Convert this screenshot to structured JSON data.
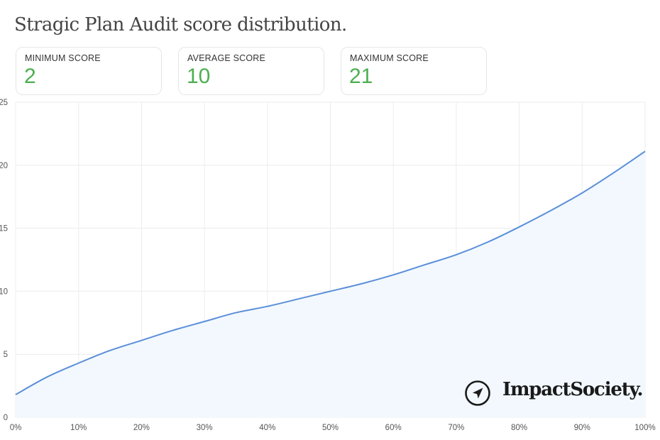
{
  "title": "Stragic Plan Audit score distribution.",
  "stats": [
    {
      "label": "MINIMUM SCORE",
      "value": "2"
    },
    {
      "label": "AVERAGE SCORE",
      "value": "10"
    },
    {
      "label": "MAXIMUM SCORE",
      "value": "21"
    }
  ],
  "logo": {
    "text": "ImpactSociety.",
    "icon": "compass-arrow-icon"
  },
  "colors": {
    "line": "#5b8fd9",
    "fill": "#f2f8fe",
    "accent": "#4caf50",
    "grid": "#ececec"
  },
  "chart_data": {
    "type": "area",
    "title": "",
    "xlabel": "",
    "ylabel": "",
    "xlim": [
      0,
      100
    ],
    "ylim": [
      0,
      25
    ],
    "grid": true,
    "x_ticks": [
      "0%",
      "10%",
      "20%",
      "30%",
      "40%",
      "50%",
      "60%",
      "70%",
      "80%",
      "90%",
      "100%"
    ],
    "y_ticks": [
      "0",
      "5",
      "10",
      "15",
      "20",
      "25"
    ],
    "x_tick_values": [
      0,
      10,
      20,
      30,
      40,
      50,
      60,
      70,
      80,
      90,
      100
    ],
    "y_tick_values": [
      0,
      5,
      10,
      15,
      20,
      25
    ],
    "series": [
      {
        "x": [
          0,
          5,
          10,
          15,
          20,
          25,
          30,
          35,
          40,
          45,
          50,
          55,
          60,
          65,
          70,
          75,
          80,
          85,
          90,
          95,
          100
        ],
        "values": [
          1.8,
          3.2,
          4.3,
          5.3,
          6.1,
          6.9,
          7.6,
          8.3,
          8.8,
          9.4,
          10.0,
          10.6,
          11.3,
          12.1,
          12.9,
          13.9,
          15.1,
          16.4,
          17.8,
          19.4,
          21.1
        ]
      }
    ]
  }
}
